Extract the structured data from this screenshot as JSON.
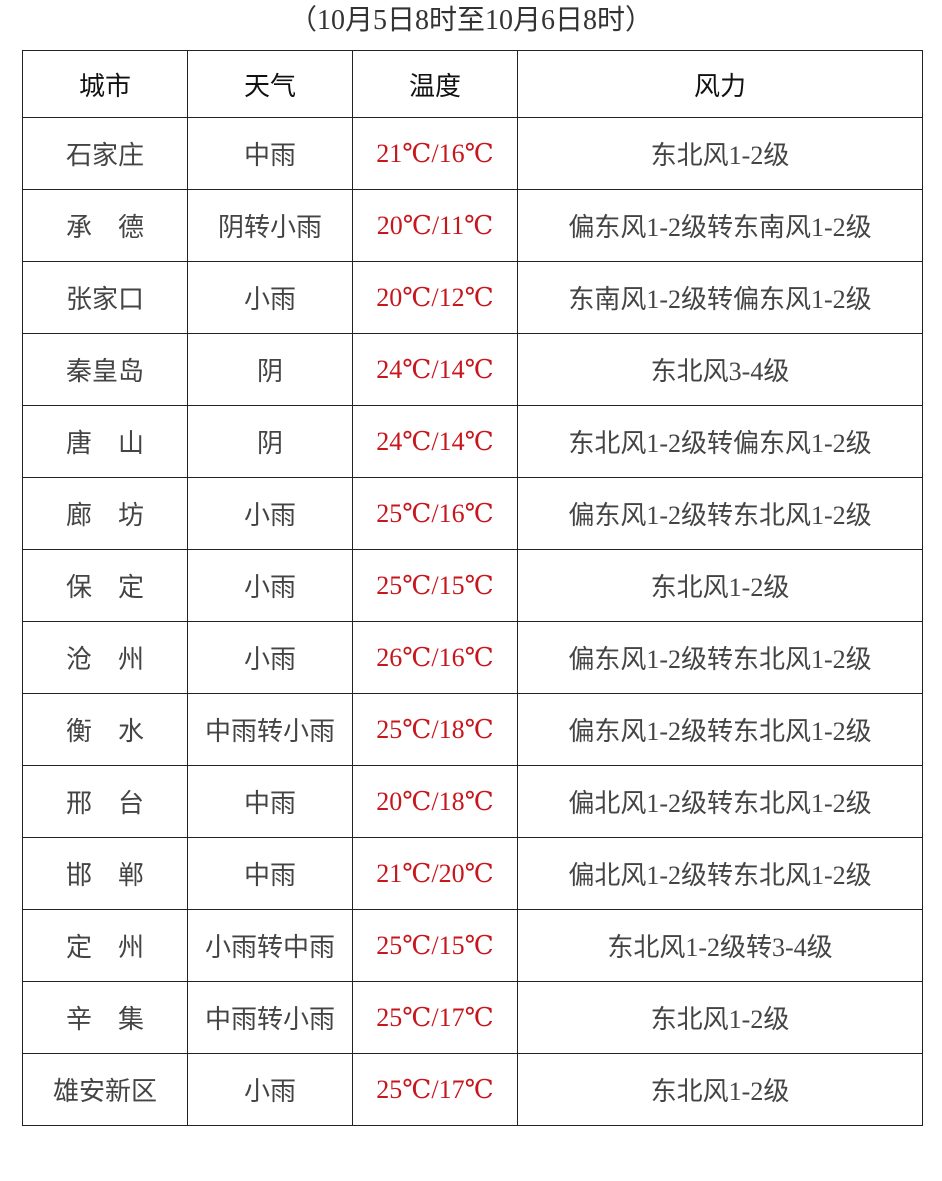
{
  "subtitle": "（10月5日8时至10月6日8时）",
  "colors": {
    "temperature": "#c8161d",
    "text": "#444444"
  },
  "table": {
    "headers": [
      "城市",
      "天气",
      "温度",
      "风力"
    ],
    "rows": [
      [
        "石家庄",
        "中雨",
        "21℃/16℃",
        "东北风1-2级"
      ],
      [
        "承　德",
        "阴转小雨",
        "20℃/11℃",
        "偏东风1-2级转东南风1-2级"
      ],
      [
        "张家口",
        "小雨",
        "20℃/12℃",
        "东南风1-2级转偏东风1-2级"
      ],
      [
        "秦皇岛",
        "阴",
        "24℃/14℃",
        "东北风3-4级"
      ],
      [
        "唐　山",
        "阴",
        "24℃/14℃",
        "东北风1-2级转偏东风1-2级"
      ],
      [
        "廊　坊",
        "小雨",
        "25℃/16℃",
        "偏东风1-2级转东北风1-2级"
      ],
      [
        "保　定",
        "小雨",
        "25℃/15℃",
        "东北风1-2级"
      ],
      [
        "沧　州",
        "小雨",
        "26℃/16℃",
        "偏东风1-2级转东北风1-2级"
      ],
      [
        "衡　水",
        "中雨转小雨",
        "25℃/18℃",
        "偏东风1-2级转东北风1-2级"
      ],
      [
        "邢　台",
        "中雨",
        "20℃/18℃",
        "偏北风1-2级转东北风1-2级"
      ],
      [
        "邯　郸",
        "中雨",
        "21℃/20℃",
        "偏北风1-2级转东北风1-2级"
      ],
      [
        "定　州",
        "小雨转中雨",
        "25℃/15℃",
        "东北风1-2级转3-4级"
      ],
      [
        "辛　集",
        "中雨转小雨",
        "25℃/17℃",
        "东北风1-2级"
      ],
      [
        "雄安新区",
        "小雨",
        "25℃/17℃",
        "东北风1-2级"
      ]
    ]
  }
}
